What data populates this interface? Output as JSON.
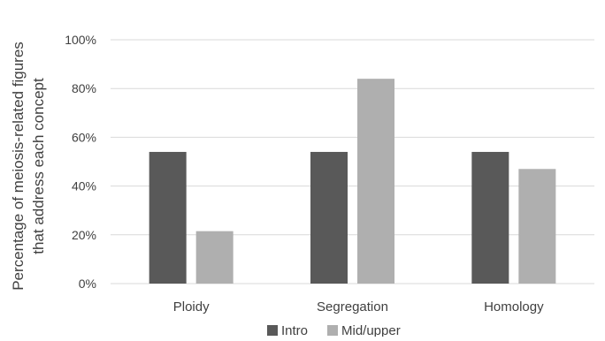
{
  "chart_data": {
    "type": "bar",
    "title": "",
    "xlabel": "",
    "ylabel": "Percentage of meiosis-related figures that address each concept",
    "ylabel_lines": [
      "Percentage of meiosis-related figures",
      "that address each concept"
    ],
    "categories": [
      "Ploidy",
      "Segregation",
      "Homology"
    ],
    "series": [
      {
        "name": "Intro",
        "values": [
          54,
          54,
          54
        ],
        "color": "#595959"
      },
      {
        "name": "Mid/upper",
        "values": [
          21.5,
          84,
          47
        ],
        "color": "#afafaf"
      }
    ],
    "ylim": [
      0,
      100
    ],
    "yticks": [
      0,
      20,
      40,
      60,
      80,
      100
    ],
    "ytick_labels": [
      "0%",
      "20%",
      "40%",
      "60%",
      "80%",
      "100%"
    ],
    "grid": true,
    "grid_color": "#d9d9d9",
    "legend_position": "bottom"
  }
}
